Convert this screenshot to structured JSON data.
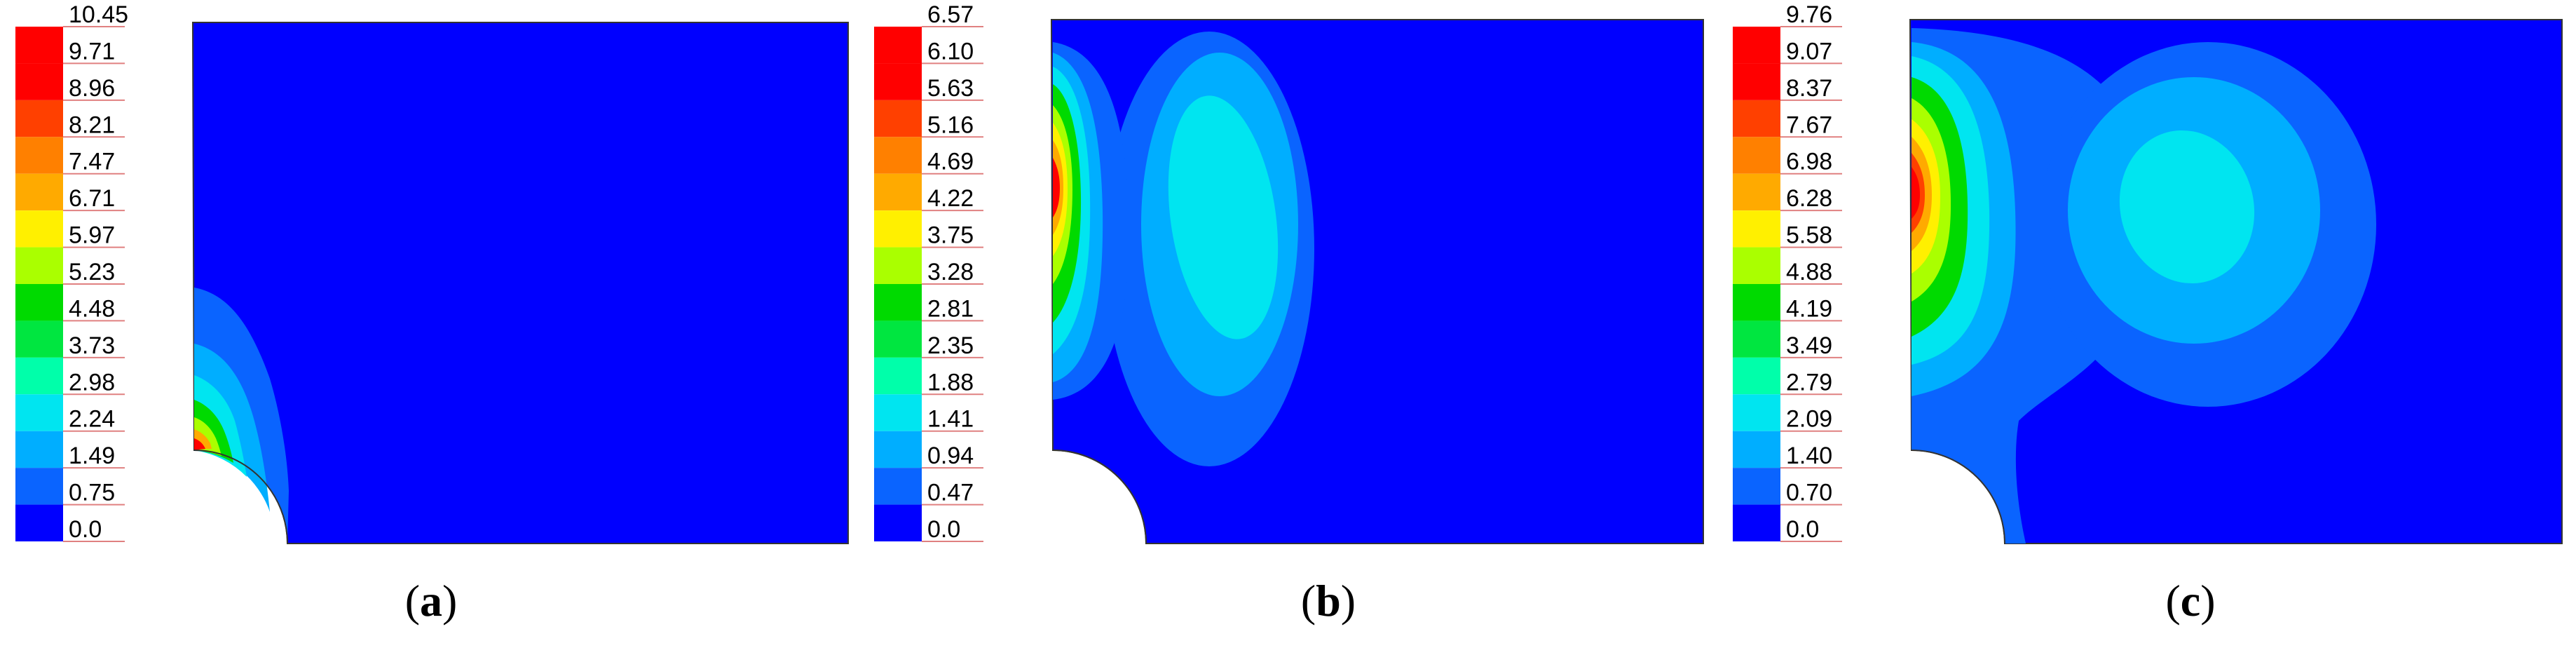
{
  "colors": [
    "#0000FF",
    "#0A64FF",
    "#00AEFF",
    "#00E5F0",
    "#00FFAA",
    "#00E640",
    "#00DA00",
    "#AAFF00",
    "#FFF000",
    "#FFAA00",
    "#FF8000",
    "#FF4000",
    "#FF0000",
    "#FF0000"
  ],
  "panels": [
    {
      "caption_open": "(",
      "caption_letter": "a",
      "caption_close": ")",
      "legend": [
        "10.45",
        "9.71",
        "8.96",
        "8.21",
        "7.47",
        "6.71",
        "5.97",
        "5.23",
        "4.48",
        "3.73",
        "2.98",
        "2.24",
        "1.49",
        "0.75",
        "0.0"
      ]
    },
    {
      "caption_open": "(",
      "caption_letter": "b",
      "caption_close": ")",
      "legend": [
        "6.57",
        "6.10",
        "5.63",
        "5.16",
        "4.69",
        "4.22",
        "3.75",
        "3.28",
        "2.81",
        "2.35",
        "1.88",
        "1.41",
        "0.94",
        "0.47",
        "0.0"
      ]
    },
    {
      "caption_open": "(",
      "caption_letter": "c",
      "caption_close": ")",
      "legend": [
        "9.76",
        "9.07",
        "8.37",
        "7.67",
        "6.98",
        "6.28",
        "5.58",
        "4.88",
        "4.19",
        "3.49",
        "2.79",
        "2.09",
        "1.40",
        "0.70",
        "0.0"
      ]
    }
  ]
}
